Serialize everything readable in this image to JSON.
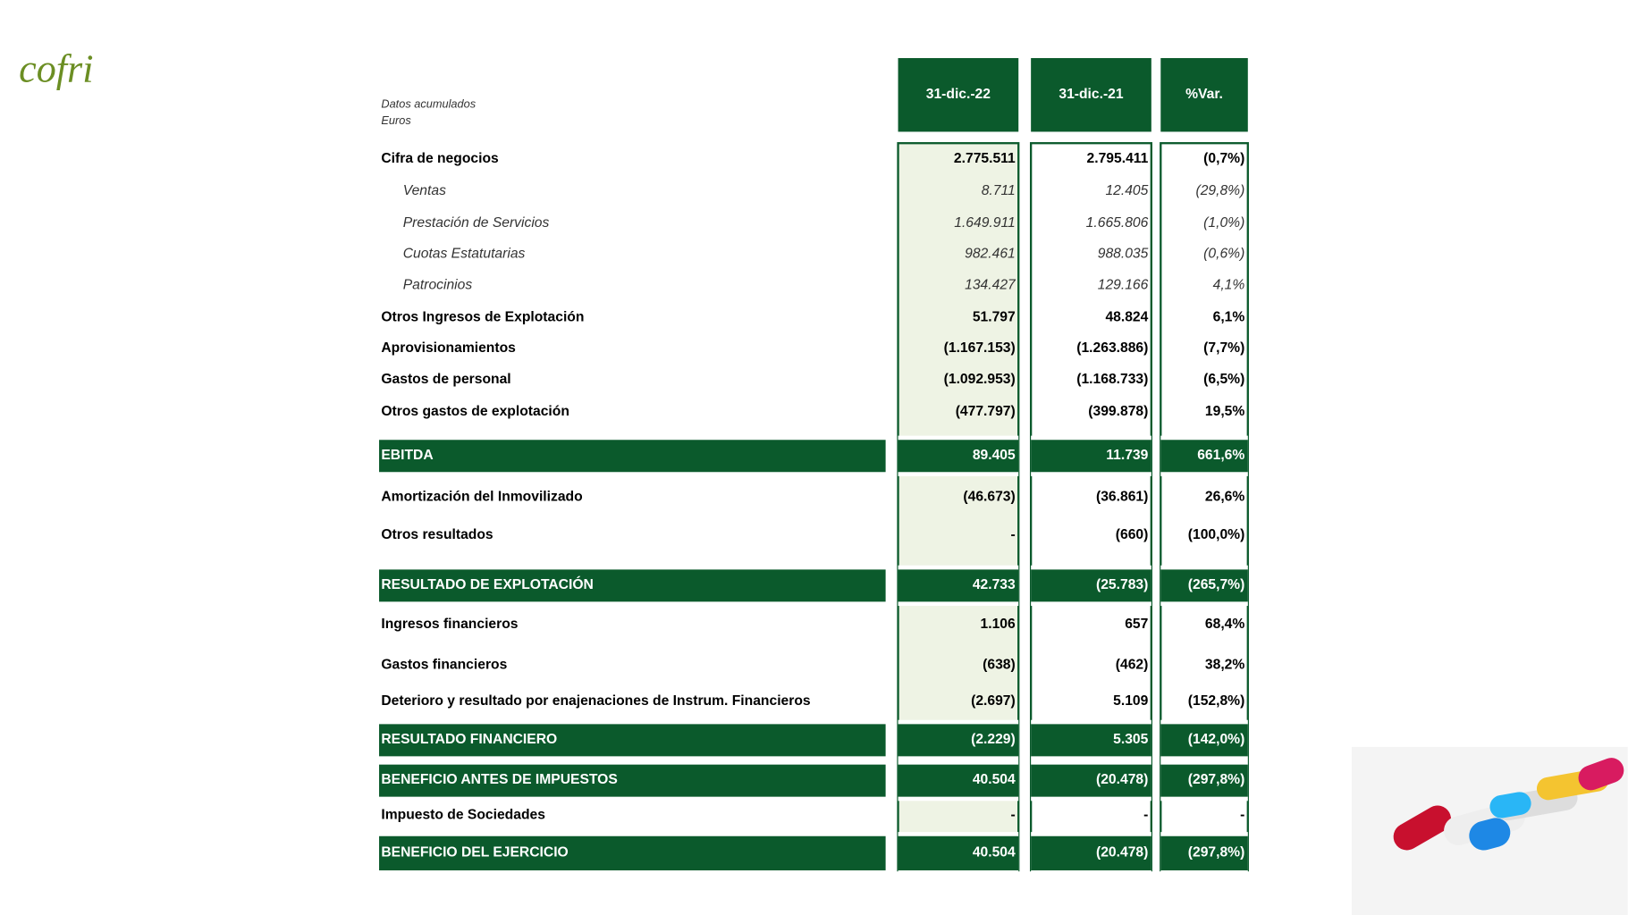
{
  "logo": "cofri",
  "header": {
    "note": [
      "Datos acumulados",
      "Euros"
    ],
    "columns": [
      "31-dic.-22",
      "31-dic.-21",
      "%Var."
    ]
  },
  "table": {
    "rows": [
      [
        "Cifra de negocios",
        "2.775.511",
        "2.795.411",
        "(0,7%)"
      ],
      [
        "Ventas",
        "8.711",
        "12.405",
        "(29,8%)"
      ],
      [
        "Prestación de Servicios",
        "1.649.911",
        "1.665.806",
        "(1,0%)"
      ],
      [
        "Cuotas Estatutarias",
        "982.461",
        "988.035",
        "(0,6%)"
      ],
      [
        "Patrocinios",
        "134.427",
        "129.166",
        "4,1%"
      ],
      [
        "Otros Ingresos de Explotación",
        "51.797",
        "48.824",
        "6,1%"
      ],
      [
        "Aprovisionamientos",
        "(1.167.153)",
        "(1.263.886)",
        "(7,7%)"
      ],
      [
        "Gastos de personal",
        "(1.092.953)",
        "(1.168.733)",
        "(6,5%)"
      ],
      [
        "Otros gastos de explotación",
        "(477.797)",
        "(399.878)",
        "19,5%"
      ],
      [
        "EBITDA",
        "89.405",
        "11.739",
        "661,6%"
      ],
      [
        "Amortización del Inmovilizado",
        "(46.673)",
        "(36.861)",
        "26,6%"
      ],
      [
        "Otros resultados",
        "-",
        "(660)",
        "(100,0%)"
      ],
      [
        "RESULTADO DE EXPLOTACIÓN",
        "42.733",
        "(25.783)",
        "(265,7%)"
      ],
      [
        "Ingresos financieros",
        "1.106",
        "657",
        "68,4%"
      ],
      [
        "Gastos financieros",
        "(638)",
        "(462)",
        "38,2%"
      ],
      [
        "Deterioro y resultado por enajenaciones de Instrum. Financieros",
        "(2.697)",
        "5.109",
        "(152,8%)"
      ],
      [
        "RESULTADO FINANCIERO",
        "(2.229)",
        "5.305",
        "(142,0%)"
      ],
      [
        "BENEFICIO ANTES DE IMPUESTOS",
        "40.504",
        "(20.478)",
        "(297,8%)"
      ],
      [
        "Impuesto de Sociedades",
        "-",
        "-",
        "-"
      ],
      [
        "BENEFICIO DEL EJERCICIO",
        "40.504",
        "(20.478)",
        "(297,8%)"
      ]
    ]
  }
}
